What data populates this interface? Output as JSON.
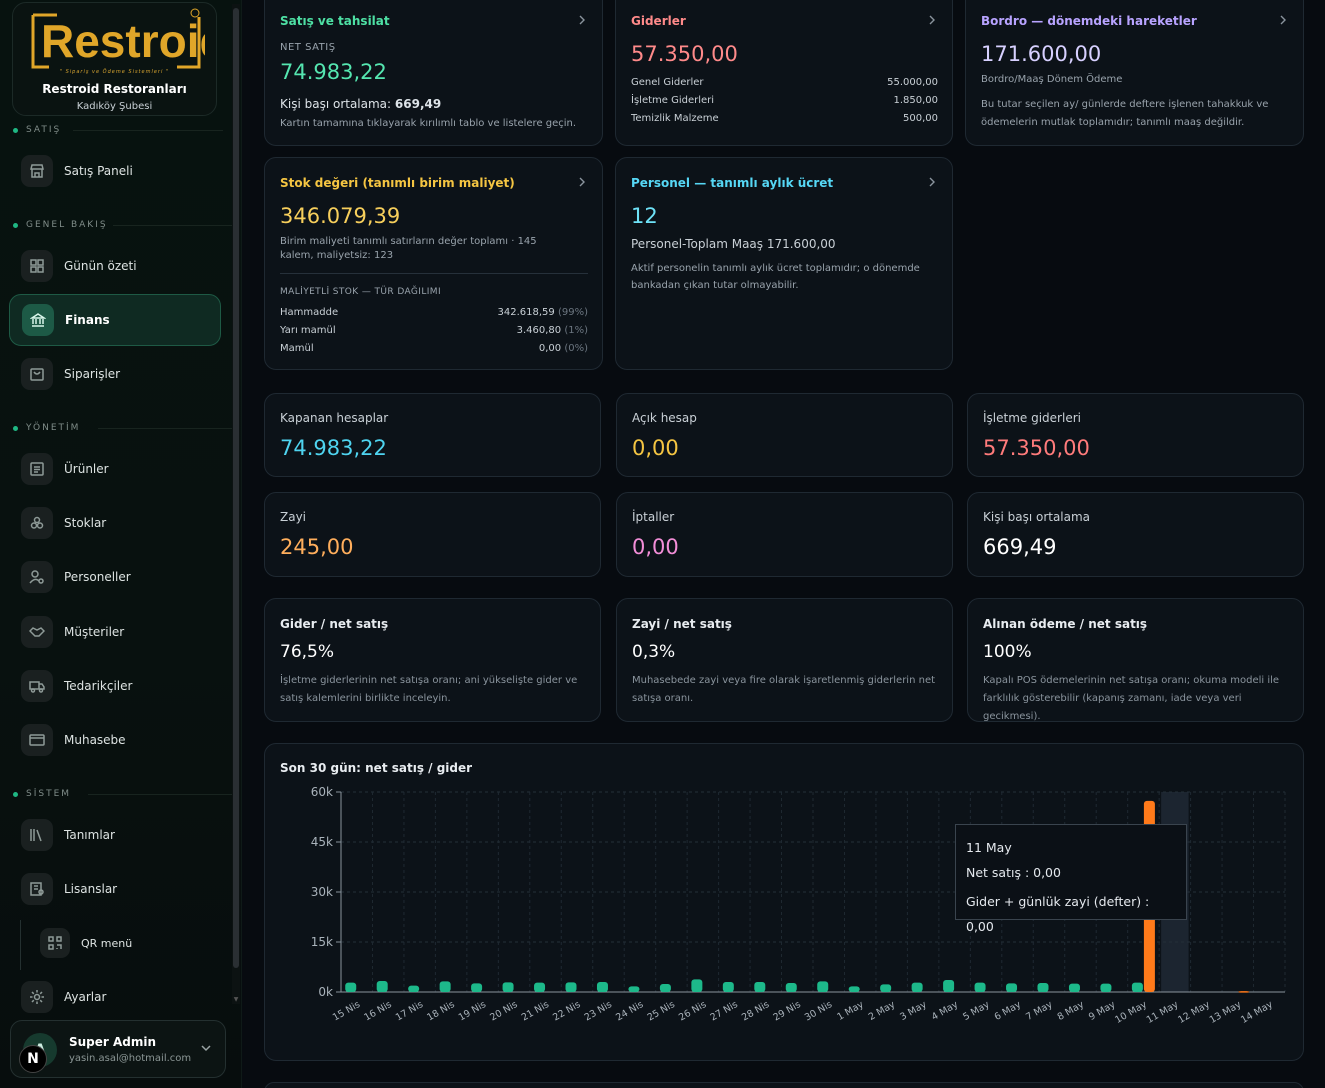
{
  "brand": {
    "logo_text": "Restroid",
    "logo_sub": "\" Sipariş ve Ödeme Sistemleri \"",
    "name": "Restroid Restoranları",
    "branch": "Kadıköy Şubesi",
    "accent": "#e0a629"
  },
  "sidebar": {
    "sections": [
      {
        "label": "SATIŞ"
      },
      {
        "label": "GENEL BAKIŞ"
      },
      {
        "label": "YÖNETİM"
      },
      {
        "label": "SİSTEM"
      }
    ],
    "items": [
      {
        "label": "Satış Paneli",
        "icon": "store-icon"
      },
      {
        "label": "Günün özeti",
        "icon": "grid-icon"
      },
      {
        "label": "Finans",
        "icon": "bank-icon",
        "active": true
      },
      {
        "label": "Siparişler",
        "icon": "bag-icon"
      },
      {
        "label": "Ürünler",
        "icon": "list-icon"
      },
      {
        "label": "Stoklar",
        "icon": "boxes-icon"
      },
      {
        "label": "Personeller",
        "icon": "user-gear-icon"
      },
      {
        "label": "Müşteriler",
        "icon": "handshake-icon"
      },
      {
        "label": "Tedarikçiler",
        "icon": "truck-icon"
      },
      {
        "label": "Muhasebe",
        "icon": "card-icon"
      },
      {
        "label": "Tanımlar",
        "icon": "books-icon"
      },
      {
        "label": "Lisanslar",
        "icon": "certificate-icon"
      },
      {
        "label": "QR menü",
        "icon": "qr-icon"
      },
      {
        "label": "Ayarlar",
        "icon": "gear-icon"
      }
    ]
  },
  "user": {
    "initial": "A",
    "badge": "N",
    "name": "Super Admin",
    "email": "yasin.asal@hotmail.com"
  },
  "cards": {
    "sales": {
      "title": "Satış ve tahsilat",
      "label": "NET SATIŞ",
      "value": "74.983,22",
      "per_person_label": "Kişi başı ortalama:",
      "per_person_value": "669,49",
      "hint": "Kartın tamamına tıklayarak kırılımlı tablo ve listelere geçin."
    },
    "expenses": {
      "title": "Giderler",
      "value": "57.350,00",
      "rows": [
        {
          "label": "Genel Giderler",
          "value": "55.000,00"
        },
        {
          "label": "İşletme Giderleri",
          "value": "1.850,00"
        },
        {
          "label": "Temizlik Malzeme",
          "value": "500,00"
        }
      ]
    },
    "payroll": {
      "title": "Bordro — dönemdeki hareketler",
      "value": "171.600,00",
      "sub": "Bordro/Maaş Dönem Ödeme",
      "hint": "Bu tutar seçilen ay/ günlerde deftere işlenen tahakkuk ve ödemelerin mutlak toplamıdır; tanımlı maaş değildir."
    },
    "stock": {
      "title": "Stok değeri (tanımlı birim maliyet)",
      "value": "346.079,39",
      "hint": "Birim maliyeti tanımlı satırların değer toplamı · 145 kalem, maliyetsiz: 123",
      "section": "MALİYETLİ STOK — TÜR DAĞILIMI",
      "rows": [
        {
          "label": "Hammadde",
          "value": "342.618,59",
          "pct": "(99%)"
        },
        {
          "label": "Yarı mamül",
          "value": "3.460,80",
          "pct": "(1%)"
        },
        {
          "label": "Mamül",
          "value": "0,00",
          "pct": "(0%)"
        }
      ]
    },
    "staff": {
      "title": "Personel — tanımlı aylık ücret",
      "value": "12",
      "sub": "Personel-Toplam Maaş 171.600,00",
      "hint": "Aktif personelin tanımlı aylık ücret toplamıdır; o dönemde bankadan çıkan tutar olmayabilir."
    }
  },
  "kpis": [
    {
      "label": "Kapanan hesaplar",
      "value": "74.983,22",
      "color": "#4fd4f0"
    },
    {
      "label": "Açık hesap",
      "value": "0,00",
      "color": "#f5c542"
    },
    {
      "label": "İşletme giderleri",
      "value": "57.350,00",
      "color": "#ff7b7b"
    },
    {
      "label": "Zayi",
      "value": "245,00",
      "color": "#ffae5c"
    },
    {
      "label": "İptaller",
      "value": "0,00",
      "color": "#f38ed8"
    },
    {
      "label": "Kişi başı ortalama",
      "value": "669,49",
      "color": "#ffffff"
    }
  ],
  "ratios": [
    {
      "title": "Gider / net satış",
      "value": "76,5%",
      "desc": "İşletme giderlerinin net satışa oranı; ani yükselişte gider ve satış kalemlerini birlikte inceleyin."
    },
    {
      "title": "Zayi / net satış",
      "value": "0,3%",
      "desc": "Muhasebede zayi veya fire olarak işaretlenmiş giderlerin net satışa oranı."
    },
    {
      "title": "Alınan ödeme / net satış",
      "value": "100%",
      "desc": "Kapalı POS ödemelerinin net satışa oranı; okuma modeli ile farklılık gösterebilir (kapanış zamanı, iade veya veri gecikmesi)."
    }
  ],
  "chart_title": "Son 30 gün: net satış / gider",
  "tooltip": {
    "date": "11 May",
    "line1": "Net satış : 0,00",
    "line2": "Gider + günlük zayi (defter) : 0,00"
  },
  "chart_data": {
    "type": "bar",
    "title": "Son 30 gün: net satış / gider",
    "categories": [
      "15 Nis",
      "16 Nis",
      "17 Nis",
      "18 Nis",
      "19 Nis",
      "20 Nis",
      "21 Nis",
      "22 Nis",
      "23 Nis",
      "24 Nis",
      "25 Nis",
      "26 Nis",
      "27 Nis",
      "28 Nis",
      "29 Nis",
      "30 Nis",
      "1 May",
      "2 May",
      "3 May",
      "4 May",
      "5 May",
      "6 May",
      "7 May",
      "8 May",
      "9 May",
      "10 May",
      "11 May",
      "12 May",
      "13 May",
      "14 May"
    ],
    "series": [
      {
        "values": [
          2800,
          3300,
          1900,
          3200,
          2600,
          2900,
          2800,
          2900,
          3000,
          1700,
          2400,
          3800,
          3000,
          3000,
          2700,
          3200,
          1700,
          2300,
          2800,
          3600,
          2800,
          2600,
          2700,
          2500,
          2500,
          2800,
          0,
          0,
          0,
          0
        ],
        "color": "#1db98a"
      },
      {
        "values": [
          0,
          0,
          0,
          0,
          0,
          0,
          0,
          0,
          0,
          0,
          0,
          0,
          0,
          0,
          0,
          0,
          0,
          0,
          0,
          0,
          0,
          0,
          0,
          0,
          0,
          57350,
          0,
          0,
          245,
          0
        ],
        "color": "#ff7a1a"
      }
    ],
    "yticks": [
      "0k",
      "15k",
      "30k",
      "45k",
      "60k"
    ],
    "ylim": [
      0,
      60000
    ],
    "highlight_index": 26,
    "grid": true
  }
}
